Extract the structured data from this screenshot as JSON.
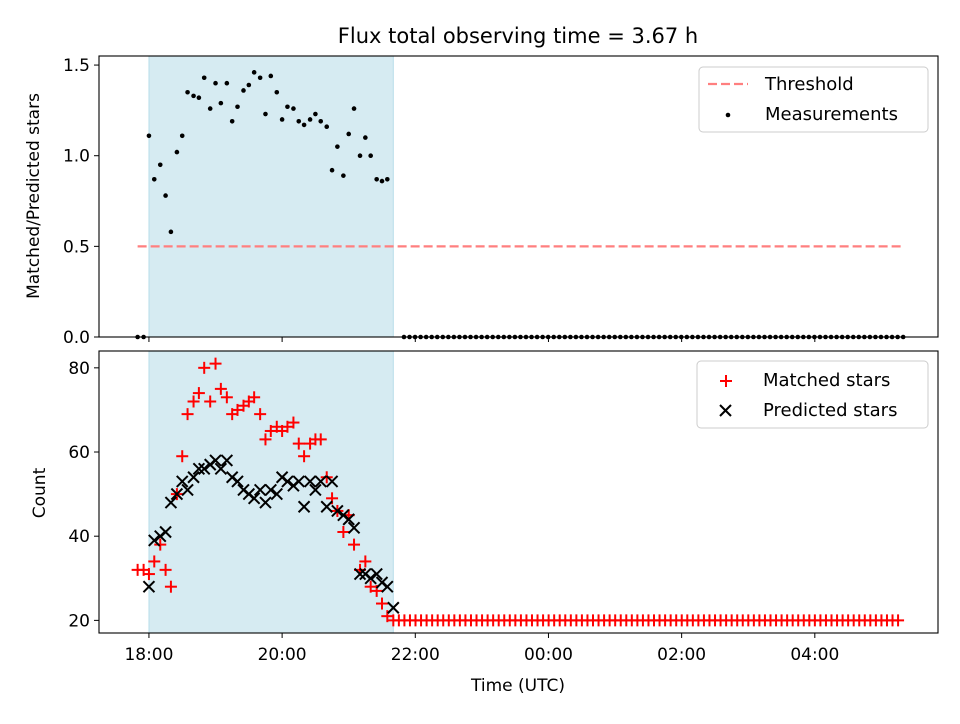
{
  "chart_data": [
    {
      "type": "scatter",
      "title": "Flux total observing time = 3.67 h",
      "ylabel": "Matched/Predicted stars",
      "xlabel": "",
      "xlim_hours": [
        17.25,
        29.85
      ],
      "ylim": [
        0,
        1.55
      ],
      "yticks": [
        "0.0",
        "0.5",
        "1.0",
        "1.5"
      ],
      "ytick_values": [
        0,
        0.5,
        1.0,
        1.5
      ],
      "shaded_span_hours": [
        18.0,
        21.67
      ],
      "threshold": {
        "name": "Threshold",
        "value": 0.5,
        "x_from": 17.83,
        "x_to": 29.33,
        "color": "#ff7f7f"
      },
      "legend": [
        {
          "label": "Threshold"
        },
        {
          "label": "Measurements"
        }
      ],
      "legend_placement": "top-right",
      "measurements": {
        "name": "Measurements",
        "color": "#000000",
        "x_hours": [
          17.83,
          17.92,
          18.0,
          18.08,
          18.17,
          18.25,
          18.33,
          18.42,
          18.5,
          18.58,
          18.67,
          18.75,
          18.83,
          18.92,
          19.0,
          19.08,
          19.17,
          19.25,
          19.33,
          19.42,
          19.5,
          19.58,
          19.67,
          19.75,
          19.83,
          19.92,
          20.0,
          20.08,
          20.17,
          20.25,
          20.33,
          20.42,
          20.5,
          20.58,
          20.67,
          20.75,
          20.83,
          20.92,
          21.0,
          21.08,
          21.17,
          21.25,
          21.33,
          21.42,
          21.5,
          21.58
        ],
        "y": [
          0.0,
          0.0,
          1.11,
          0.87,
          0.95,
          0.78,
          0.58,
          1.02,
          1.11,
          1.35,
          1.33,
          1.32,
          1.43,
          1.26,
          1.4,
          1.29,
          1.4,
          1.19,
          1.27,
          1.36,
          1.39,
          1.46,
          1.43,
          1.23,
          1.44,
          1.35,
          1.2,
          1.27,
          1.26,
          1.19,
          1.17,
          1.2,
          1.23,
          1.19,
          1.16,
          0.92,
          1.05,
          0.89,
          1.12,
          1.26,
          1.0,
          1.1,
          1.0,
          0.87,
          0.86,
          0.87
        ],
        "zero_tail": {
          "x_from": 21.83,
          "x_to": 29.33,
          "step": 0.0833,
          "y": 0.0
        }
      }
    },
    {
      "type": "scatter",
      "title": "",
      "ylabel": "Count",
      "xlabel": "Time (UTC)",
      "xlim_hours": [
        17.25,
        29.85
      ],
      "ylim": [
        17,
        84
      ],
      "yticks": [
        "20",
        "40",
        "60",
        "80"
      ],
      "ytick_values": [
        20,
        40,
        60,
        80
      ],
      "xticks": [
        "18:00",
        "20:00",
        "22:00",
        "00:00",
        "02:00",
        "04:00"
      ],
      "xtick_hours": [
        18,
        20,
        22,
        24,
        26,
        28
      ],
      "shaded_span_hours": [
        18.0,
        21.67
      ],
      "legend": [
        {
          "label": "Matched stars"
        },
        {
          "label": "Predicted stars"
        }
      ],
      "legend_placement": "top-right",
      "series": [
        {
          "name": "Matched stars",
          "marker": "+",
          "color": "#ff0000",
          "x_hours": [
            17.83,
            17.92,
            18.0,
            18.08,
            18.17,
            18.25,
            18.33,
            18.42,
            18.5,
            18.58,
            18.67,
            18.75,
            18.83,
            18.92,
            19.0,
            19.08,
            19.17,
            19.25,
            19.33,
            19.42,
            19.5,
            19.58,
            19.67,
            19.75,
            19.83,
            19.92,
            20.0,
            20.08,
            20.17,
            20.25,
            20.33,
            20.42,
            20.5,
            20.58,
            20.67,
            20.75,
            20.83,
            20.92,
            21.0,
            21.08,
            21.17,
            21.25,
            21.33,
            21.42,
            21.5,
            21.58
          ],
          "y": [
            32,
            32,
            31,
            34,
            38,
            32,
            28,
            50,
            59,
            69,
            72,
            74,
            80,
            72,
            81,
            75,
            73,
            69,
            70,
            71,
            72,
            73,
            69,
            63,
            65,
            66,
            65,
            66,
            67,
            62,
            59,
            62,
            63,
            63,
            54,
            49,
            46,
            41,
            45,
            38,
            32,
            34,
            28,
            27,
            24,
            21
          ],
          "tail": {
            "x_from": 21.67,
            "x_to": 29.33,
            "step": 0.0833,
            "y": 20
          }
        },
        {
          "name": "Predicted stars",
          "marker": "x",
          "color": "#000000",
          "x_hours": [
            18.0,
            18.08,
            18.17,
            18.25,
            18.33,
            18.42,
            18.5,
            18.58,
            18.67,
            18.75,
            18.83,
            18.92,
            19.0,
            19.08,
            19.17,
            19.25,
            19.33,
            19.42,
            19.5,
            19.58,
            19.67,
            19.75,
            19.83,
            19.92,
            20.0,
            20.08,
            20.17,
            20.25,
            20.33,
            20.42,
            20.5,
            20.58,
            20.67,
            20.75,
            20.83,
            20.92,
            21.0,
            21.08,
            21.17,
            21.25,
            21.33,
            21.42,
            21.5,
            21.58,
            21.67
          ],
          "y": [
            28,
            39,
            40,
            41,
            48,
            50,
            53,
            51,
            54,
            56,
            56,
            57,
            58,
            56,
            58,
            54,
            53,
            51,
            50,
            49,
            51,
            48,
            51,
            50,
            54,
            53,
            52,
            53,
            47,
            53,
            51,
            53,
            47,
            53,
            46,
            45,
            44,
            42,
            31,
            31,
            30,
            31,
            29,
            28,
            23
          ]
        }
      ]
    }
  ]
}
